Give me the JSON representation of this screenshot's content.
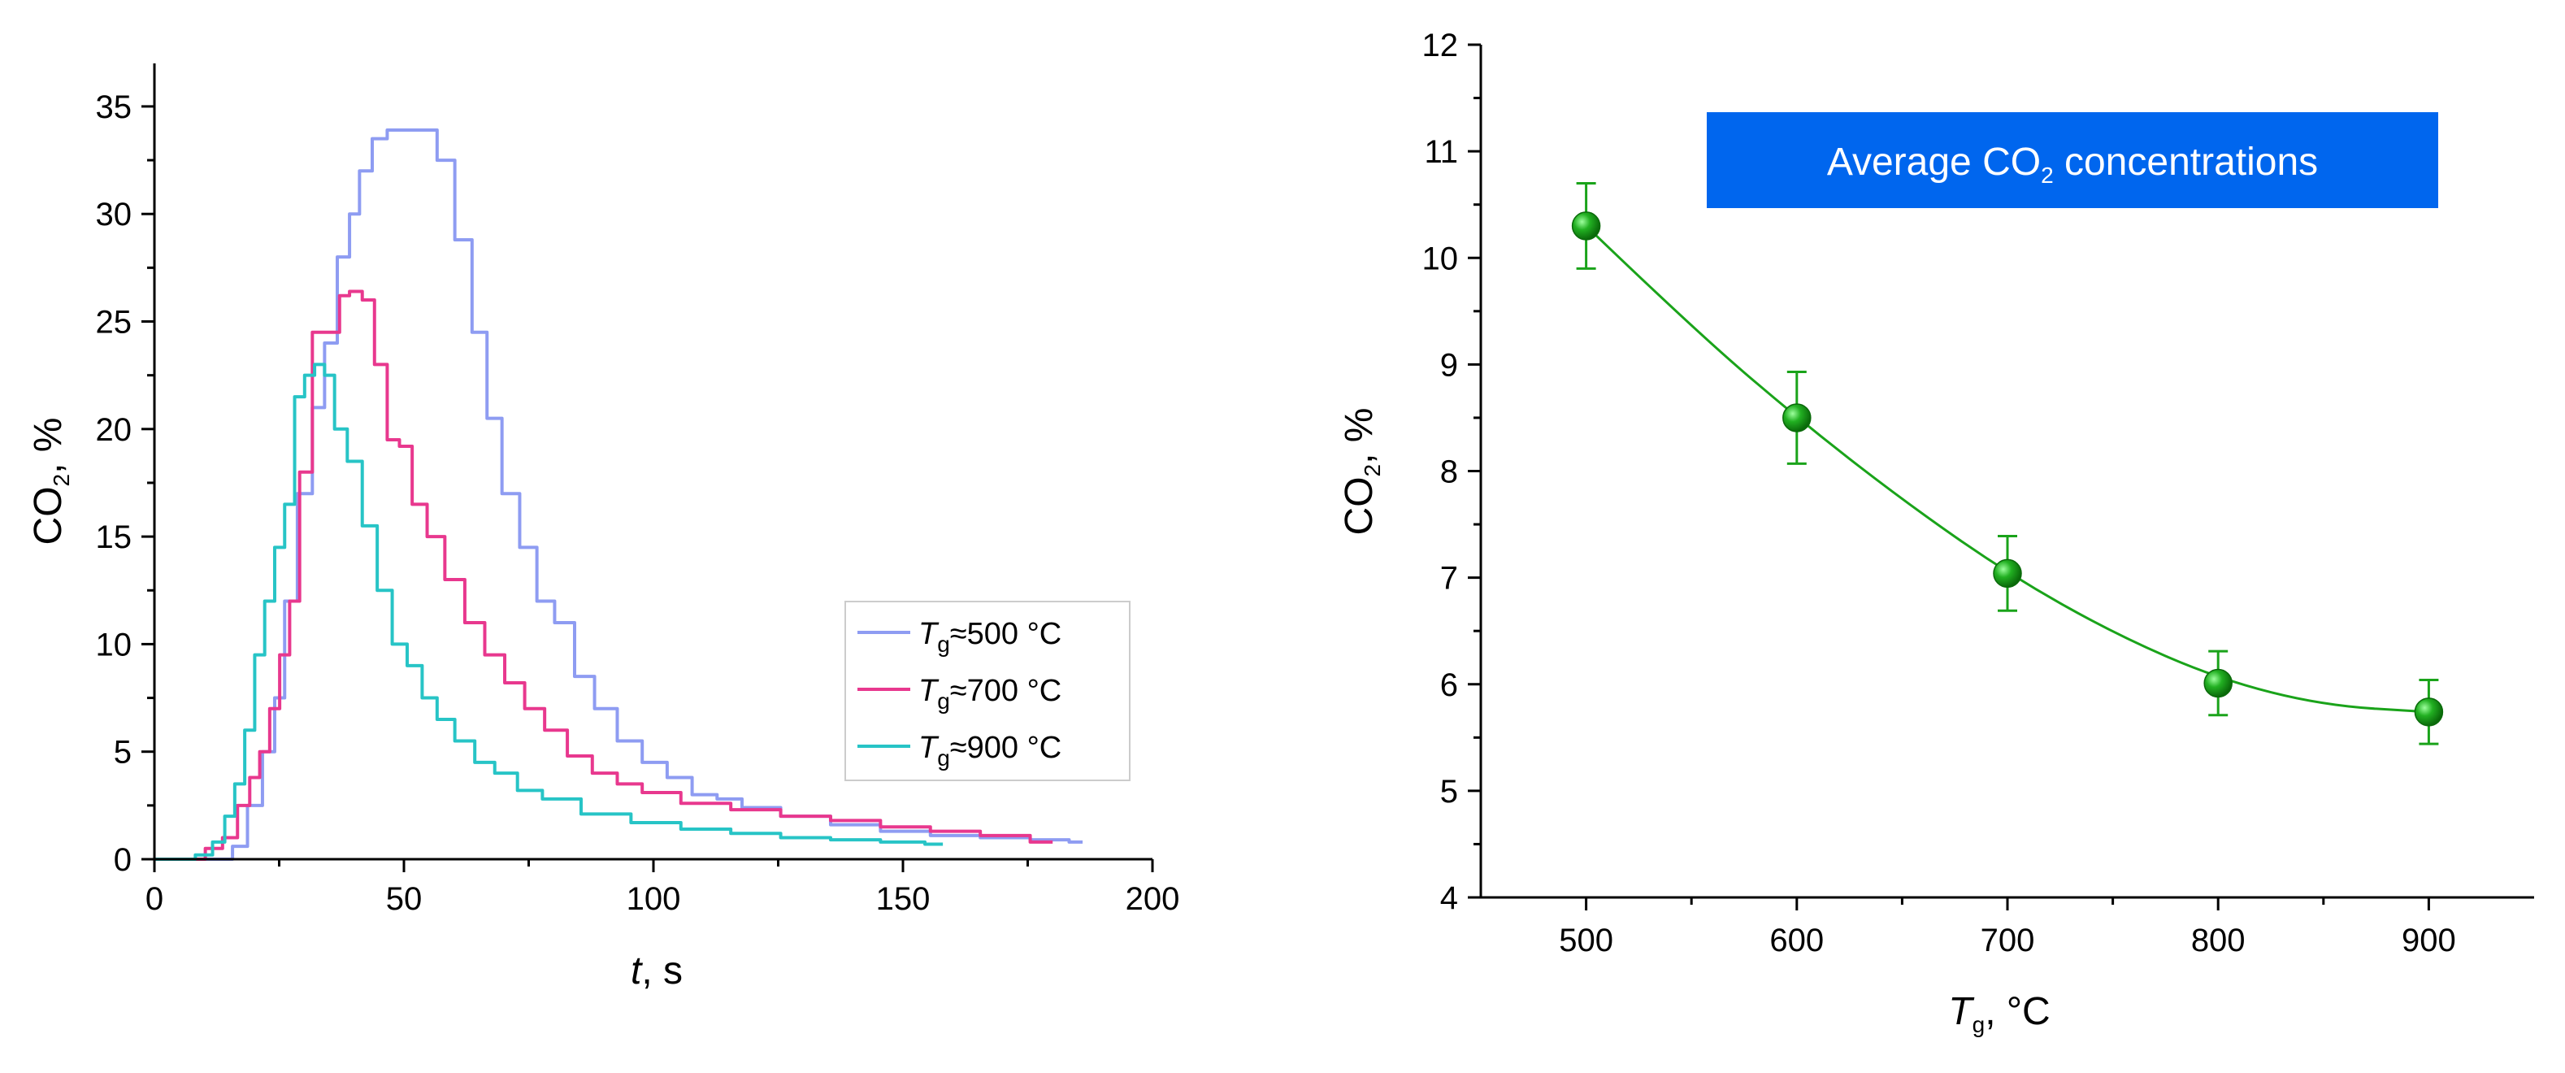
{
  "chart_data": [
    {
      "type": "line",
      "title": "",
      "xlabel": {
        "italic": "t",
        "rest": ", s"
      },
      "ylabel": {
        "pre": "CO",
        "sub": "2",
        "post": ", %"
      },
      "xlim": [
        0,
        200
      ],
      "ylim": [
        0,
        37
      ],
      "xticks": [
        0,
        50,
        100,
        150,
        200
      ],
      "yticks": [
        0,
        5,
        10,
        15,
        20,
        25,
        30,
        35
      ],
      "legend_position": "right",
      "series": [
        {
          "name": "Tg≈500 °C",
          "label_italic": "T",
          "label_sub": "g",
          "label_rest": "≈500 °C",
          "color": "#8e9cf2",
          "x": [
            0,
            14,
            17,
            20,
            23,
            25,
            27,
            30,
            33,
            35,
            38,
            40,
            42,
            45,
            48,
            50,
            55,
            58,
            62,
            65,
            68,
            71,
            75,
            78,
            82,
            86,
            90,
            95,
            100,
            105,
            110,
            115,
            120,
            130,
            140,
            150,
            160,
            170,
            180,
            186
          ],
          "y": [
            0,
            0,
            0.6,
            2.5,
            5,
            7.5,
            12,
            17,
            21,
            24,
            28,
            30,
            32,
            33.5,
            33.9,
            33.9,
            33.9,
            32.5,
            28.8,
            24.5,
            20.5,
            17,
            14.5,
            12,
            11,
            8.5,
            7,
            5.5,
            4.5,
            3.8,
            3,
            2.8,
            2.4,
            2,
            1.6,
            1.3,
            1.1,
            1,
            0.9,
            0.8
          ]
        },
        {
          "name": "Tg≈700 °C",
          "label_italic": "T",
          "label_sub": "g",
          "label_rest": "≈700 °C",
          "color": "#e8388e",
          "x": [
            0,
            8,
            12,
            15,
            18,
            20,
            22,
            24,
            26,
            28,
            30,
            33,
            36,
            38,
            40,
            43,
            45,
            48,
            50,
            53,
            56,
            60,
            64,
            68,
            72,
            76,
            80,
            85,
            90,
            95,
            100,
            110,
            120,
            130,
            140,
            150,
            160,
            170,
            180
          ],
          "y": [
            0,
            0,
            0.5,
            1,
            2.5,
            3.8,
            5,
            7,
            9.5,
            12,
            18,
            24.5,
            24.5,
            26.2,
            26.4,
            26,
            23,
            19.5,
            19.2,
            16.5,
            15,
            13,
            11,
            9.5,
            8.2,
            7,
            6,
            4.8,
            4,
            3.5,
            3.1,
            2.6,
            2.3,
            2,
            1.8,
            1.5,
            1.3,
            1.1,
            0.8
          ]
        },
        {
          "name": "Tg≈900 °C",
          "label_italic": "T",
          "label_sub": "g",
          "label_rest": "≈900 °C",
          "color": "#27c4c6",
          "x": [
            0,
            6,
            10,
            13,
            15,
            17,
            19,
            21,
            23,
            25,
            27,
            29,
            31,
            33,
            35,
            37,
            40,
            43,
            46,
            49,
            52,
            55,
            58,
            62,
            66,
            70,
            75,
            80,
            90,
            100,
            110,
            120,
            130,
            140,
            150,
            158
          ],
          "y": [
            0,
            0,
            0.2,
            0.8,
            2,
            3.5,
            6,
            9.5,
            12,
            14.5,
            16.5,
            21.5,
            22.5,
            23,
            22.5,
            20,
            18.5,
            15.5,
            12.5,
            10,
            9,
            7.5,
            6.5,
            5.5,
            4.5,
            4,
            3.2,
            2.8,
            2.1,
            1.7,
            1.4,
            1.2,
            1,
            0.9,
            0.8,
            0.7
          ]
        }
      ]
    },
    {
      "type": "scatter",
      "title": "Average CO2 concentrations",
      "banner": {
        "pre": "Average CO",
        "sub": "2",
        "post": " concentrations",
        "color": "#0066ee"
      },
      "xlabel": {
        "italic": "T",
        "sub": "g",
        "rest": ", °C"
      },
      "ylabel": {
        "pre": "CO",
        "sub": "2",
        "post": ", %"
      },
      "xlim": [
        450,
        950
      ],
      "ylim": [
        4,
        12
      ],
      "xticks": [
        500,
        600,
        700,
        800,
        900
      ],
      "yticks": [
        4,
        5,
        6,
        7,
        8,
        9,
        10,
        11,
        12
      ],
      "color": "#1aa31a",
      "points": {
        "x": [
          500,
          600,
          700,
          800,
          900
        ],
        "y": [
          10.3,
          8.5,
          7.04,
          6.01,
          5.74
        ],
        "err": [
          0.4,
          0.43,
          0.35,
          0.3,
          0.3
        ]
      },
      "fit": {
        "x": [
          500,
          550,
          600,
          650,
          700,
          750,
          800,
          850,
          900
        ],
        "y": [
          10.3,
          9.35,
          8.5,
          7.73,
          7.04,
          6.48,
          6.05,
          5.8,
          5.74
        ]
      }
    }
  ]
}
